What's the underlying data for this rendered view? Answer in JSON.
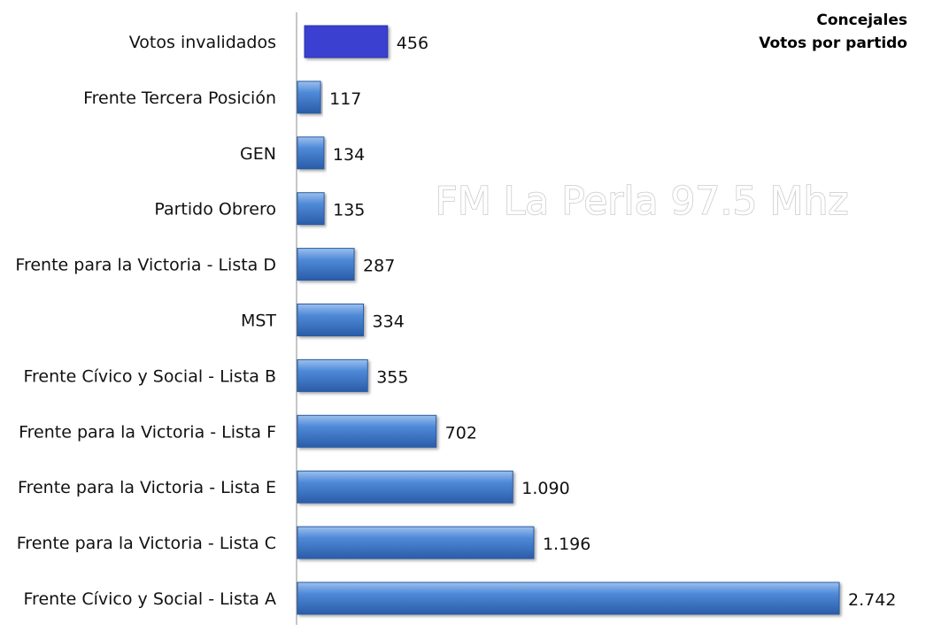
{
  "chart_data": {
    "type": "bar",
    "orientation": "horizontal",
    "title": "Concejales",
    "subtitle": "Votos por partido",
    "watermark": "FM La Perla 97.5 Mhz",
    "categories": [
      "Votos invalidados",
      "Frente Tercera Posición",
      "GEN",
      "Partido Obrero",
      "Frente para la Victoria - Lista D",
      "MST",
      "Frente Cívico y Social - Lista B",
      "Frente para la Victoria - Lista F",
      "Frente para la Victoria - Lista E",
      "Frente para la Victoria - Lista C",
      "Frente Cívico y Social - Lista A"
    ],
    "values": [
      456,
      117,
      134,
      135,
      287,
      334,
      355,
      702,
      1090,
      1196,
      2742
    ],
    "value_labels": [
      "456",
      "117",
      "134",
      "135",
      "287",
      "334",
      "355",
      "702",
      "1.090",
      "1.196",
      "2.742"
    ],
    "colors": [
      "#3a3fd1",
      "#3f79c9",
      "#3f79c9",
      "#3f79c9",
      "#3f79c9",
      "#3f79c9",
      "#3f79c9",
      "#3f79c9",
      "#3f79c9",
      "#3f79c9",
      "#3f79c9"
    ],
    "xlim": [
      0,
      2742
    ],
    "grid": false,
    "legend": "none"
  }
}
